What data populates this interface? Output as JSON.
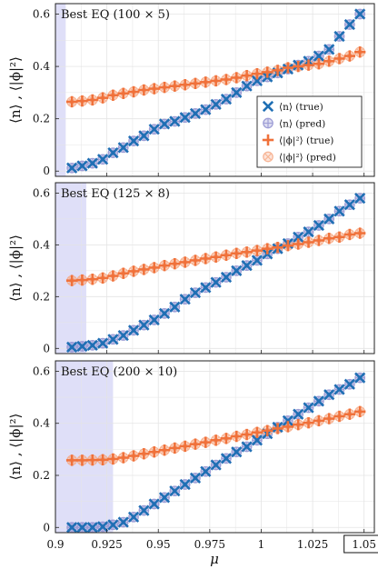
{
  "colors": {
    "n_true": "#1f6fb4",
    "n_pred": "#8f8fd0",
    "phi_true": "#f0713a",
    "phi_pred": "#f6aa86",
    "shade": "#dcdcf7",
    "grid": "#e4e4e4"
  },
  "legend": {
    "items": [
      {
        "label": "⟨n⟩ (true)",
        "marker": "x",
        "color_key": "n_true"
      },
      {
        "label": "⟨n⟩ (pred)",
        "marker": "oplus",
        "color_key": "n_pred"
      },
      {
        "label": "⟨|ϕ|²⟩ (true)",
        "marker": "plus",
        "color_key": "phi_true"
      },
      {
        "label": "⟨|ϕ|²⟩ (pred)",
        "marker": "otimes",
        "color_key": "phi_pred"
      }
    ]
  },
  "chart_data": [
    {
      "type": "scatter",
      "title": "Best EQ (100 × 5)",
      "xlabel": "",
      "ylabel": "⟨n⟩ , ⟨|ϕ|²⟩",
      "xlim": [
        0.9,
        1.055
      ],
      "ylim": [
        -0.02,
        0.64
      ],
      "yticks": [
        0,
        0.2,
        0.4,
        0.6
      ],
      "yticklabels": [
        "0",
        "0.2",
        "0.4",
        "0.6"
      ],
      "shade_x": [
        0.9,
        0.905
      ],
      "legend_position": "right",
      "grid": true,
      "x": [
        0.908,
        0.913,
        0.918,
        0.923,
        0.928,
        0.933,
        0.938,
        0.943,
        0.948,
        0.953,
        0.958,
        0.963,
        0.968,
        0.973,
        0.978,
        0.983,
        0.988,
        0.993,
        0.998,
        1.003,
        1.008,
        1.013,
        1.018,
        1.023,
        1.028,
        1.033,
        1.038,
        1.043,
        1.048
      ],
      "series": [
        {
          "name": "⟨n⟩ (true)",
          "values": [
            0.012,
            0.02,
            0.03,
            0.045,
            0.07,
            0.09,
            0.115,
            0.135,
            0.16,
            0.18,
            0.19,
            0.205,
            0.22,
            0.235,
            0.255,
            0.275,
            0.3,
            0.325,
            0.345,
            0.36,
            0.375,
            0.39,
            0.405,
            0.42,
            0.44,
            0.465,
            0.515,
            0.56,
            0.6
          ]
        },
        {
          "name": "⟨n⟩ (pred)",
          "values": [
            0.012,
            0.02,
            0.03,
            0.045,
            0.07,
            0.09,
            0.115,
            0.135,
            0.16,
            0.18,
            0.19,
            0.205,
            0.22,
            0.235,
            0.255,
            0.275,
            0.3,
            0.325,
            0.345,
            0.36,
            0.375,
            0.39,
            0.405,
            0.42,
            0.44,
            0.465,
            0.515,
            0.56,
            0.6
          ]
        },
        {
          "name": "⟨|ϕ|²⟩ (true)",
          "values": [
            0.265,
            0.268,
            0.272,
            0.28,
            0.29,
            0.297,
            0.303,
            0.31,
            0.315,
            0.32,
            0.325,
            0.33,
            0.335,
            0.34,
            0.345,
            0.35,
            0.357,
            0.365,
            0.372,
            0.378,
            0.385,
            0.395,
            0.4,
            0.405,
            0.41,
            0.42,
            0.43,
            0.44,
            0.455
          ]
        },
        {
          "name": "⟨|ϕ|²⟩ (pred)",
          "values": [
            0.265,
            0.268,
            0.272,
            0.28,
            0.29,
            0.297,
            0.303,
            0.31,
            0.315,
            0.32,
            0.325,
            0.33,
            0.335,
            0.34,
            0.345,
            0.35,
            0.357,
            0.365,
            0.372,
            0.378,
            0.385,
            0.395,
            0.4,
            0.405,
            0.41,
            0.42,
            0.43,
            0.44,
            0.455
          ]
        }
      ]
    },
    {
      "type": "scatter",
      "title": "Best EQ (125 × 8)",
      "xlabel": "",
      "ylabel": "⟨n⟩ , ⟨|ϕ|²⟩",
      "xlim": [
        0.9,
        1.055
      ],
      "ylim": [
        -0.02,
        0.64
      ],
      "yticks": [
        0,
        0.2,
        0.4,
        0.6
      ],
      "yticklabels": [
        "0",
        "0.2",
        "0.4",
        "0.6"
      ],
      "shade_x": [
        0.9,
        0.915
      ],
      "grid": true,
      "x": [
        0.908,
        0.913,
        0.918,
        0.923,
        0.928,
        0.933,
        0.938,
        0.943,
        0.948,
        0.953,
        0.958,
        0.963,
        0.968,
        0.973,
        0.978,
        0.983,
        0.988,
        0.993,
        0.998,
        1.003,
        1.008,
        1.013,
        1.018,
        1.023,
        1.028,
        1.033,
        1.038,
        1.043,
        1.048
      ],
      "series": [
        {
          "name": "⟨n⟩ (true)",
          "values": [
            0.005,
            0.008,
            0.012,
            0.02,
            0.035,
            0.05,
            0.07,
            0.09,
            0.11,
            0.135,
            0.16,
            0.19,
            0.215,
            0.235,
            0.255,
            0.275,
            0.3,
            0.32,
            0.34,
            0.365,
            0.385,
            0.405,
            0.43,
            0.45,
            0.475,
            0.5,
            0.53,
            0.555,
            0.58
          ]
        },
        {
          "name": "⟨n⟩ (pred)",
          "values": [
            0.005,
            0.008,
            0.012,
            0.02,
            0.035,
            0.05,
            0.07,
            0.09,
            0.11,
            0.135,
            0.16,
            0.19,
            0.215,
            0.235,
            0.255,
            0.275,
            0.3,
            0.32,
            0.34,
            0.365,
            0.385,
            0.405,
            0.43,
            0.45,
            0.475,
            0.5,
            0.53,
            0.555,
            0.58
          ]
        },
        {
          "name": "⟨|ϕ|²⟩ (true)",
          "values": [
            0.262,
            0.264,
            0.267,
            0.272,
            0.28,
            0.29,
            0.298,
            0.305,
            0.312,
            0.32,
            0.327,
            0.333,
            0.34,
            0.347,
            0.353,
            0.36,
            0.367,
            0.372,
            0.378,
            0.385,
            0.39,
            0.397,
            0.403,
            0.41,
            0.417,
            0.425,
            0.43,
            0.44,
            0.445
          ]
        },
        {
          "name": "⟨|ϕ|²⟩ (pred)",
          "values": [
            0.262,
            0.264,
            0.267,
            0.272,
            0.28,
            0.29,
            0.298,
            0.305,
            0.312,
            0.32,
            0.327,
            0.333,
            0.34,
            0.347,
            0.353,
            0.36,
            0.367,
            0.372,
            0.378,
            0.385,
            0.39,
            0.397,
            0.403,
            0.41,
            0.417,
            0.425,
            0.43,
            0.44,
            0.445
          ]
        }
      ]
    },
    {
      "type": "scatter",
      "title": "Best EQ (200 × 10)",
      "xlabel": "μ",
      "ylabel": "⟨n⟩ , ⟨|ϕ|²⟩",
      "xlim": [
        0.9,
        1.055
      ],
      "ylim": [
        -0.02,
        0.64
      ],
      "yticks": [
        0,
        0.2,
        0.4,
        0.6
      ],
      "yticklabels": [
        "0",
        "0.2",
        "0.4",
        "0.6"
      ],
      "xticks": [
        0.9,
        0.925,
        0.95,
        0.975,
        1,
        1.025,
        1.05
      ],
      "xticklabels": [
        "0.9",
        "0.925",
        "0.95",
        "0.975",
        "1",
        "1.025",
        "1.05"
      ],
      "boxed_xtick": "1.05",
      "shade_x": [
        0.9,
        0.928
      ],
      "grid": true,
      "x": [
        0.908,
        0.913,
        0.918,
        0.923,
        0.928,
        0.933,
        0.938,
        0.943,
        0.948,
        0.953,
        0.958,
        0.963,
        0.968,
        0.973,
        0.978,
        0.983,
        0.988,
        0.993,
        0.998,
        1.003,
        1.008,
        1.013,
        1.018,
        1.023,
        1.028,
        1.033,
        1.038,
        1.043,
        1.048
      ],
      "series": [
        {
          "name": "⟨n⟩ (true)",
          "values": [
            0.0,
            0.0,
            0.0,
            0.003,
            0.01,
            0.02,
            0.04,
            0.065,
            0.09,
            0.115,
            0.14,
            0.165,
            0.19,
            0.215,
            0.24,
            0.265,
            0.29,
            0.31,
            0.335,
            0.36,
            0.385,
            0.41,
            0.435,
            0.46,
            0.485,
            0.51,
            0.53,
            0.55,
            0.575
          ]
        },
        {
          "name": "⟨n⟩ (pred)",
          "values": [
            0.0,
            0.0,
            0.0,
            0.003,
            0.01,
            0.02,
            0.04,
            0.065,
            0.09,
            0.115,
            0.14,
            0.165,
            0.19,
            0.215,
            0.24,
            0.265,
            0.29,
            0.31,
            0.335,
            0.36,
            0.385,
            0.41,
            0.435,
            0.46,
            0.485,
            0.51,
            0.53,
            0.55,
            0.575
          ]
        },
        {
          "name": "⟨|ϕ|²⟩ (true)",
          "values": [
            0.258,
            0.258,
            0.259,
            0.26,
            0.263,
            0.268,
            0.275,
            0.283,
            0.29,
            0.297,
            0.305,
            0.312,
            0.32,
            0.327,
            0.335,
            0.342,
            0.35,
            0.357,
            0.365,
            0.372,
            0.38,
            0.387,
            0.395,
            0.402,
            0.41,
            0.418,
            0.427,
            0.435,
            0.445
          ]
        },
        {
          "name": "⟨|ϕ|²⟩ (pred)",
          "values": [
            0.258,
            0.258,
            0.259,
            0.26,
            0.263,
            0.268,
            0.275,
            0.283,
            0.29,
            0.297,
            0.305,
            0.312,
            0.32,
            0.327,
            0.335,
            0.342,
            0.35,
            0.357,
            0.365,
            0.372,
            0.38,
            0.387,
            0.395,
            0.402,
            0.41,
            0.418,
            0.427,
            0.435,
            0.445
          ]
        }
      ]
    }
  ]
}
